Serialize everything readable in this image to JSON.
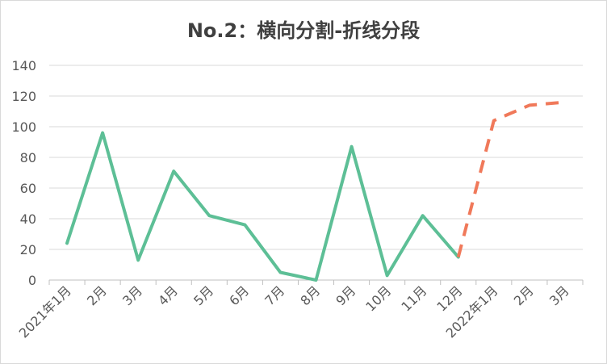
{
  "chart_data": {
    "type": "line",
    "title": "No.2：横向分割-折线分段",
    "xlabel": "",
    "ylabel": "",
    "ylim": [
      0,
      140
    ],
    "yticks": [
      0,
      20,
      40,
      60,
      80,
      100,
      120,
      140
    ],
    "grid": true,
    "legend": "none",
    "categories": [
      "2021年1月",
      "2月",
      "3月",
      "4月",
      "5月",
      "6月",
      "7月",
      "8月",
      "9月",
      "10月",
      "11月",
      "12月",
      "2022年1月",
      "2月",
      "3月"
    ],
    "series": [
      {
        "values": [
          24,
          96,
          13,
          71,
          42,
          36,
          5,
          0,
          87,
          3,
          42,
          15,
          null,
          null,
          null
        ],
        "color": "#5dbf96",
        "style": "solid"
      },
      {
        "values": [
          null,
          null,
          null,
          null,
          null,
          null,
          null,
          null,
          null,
          null,
          null,
          15,
          104,
          114,
          116
        ],
        "color": "#f0795a",
        "style": "dashed"
      }
    ]
  }
}
